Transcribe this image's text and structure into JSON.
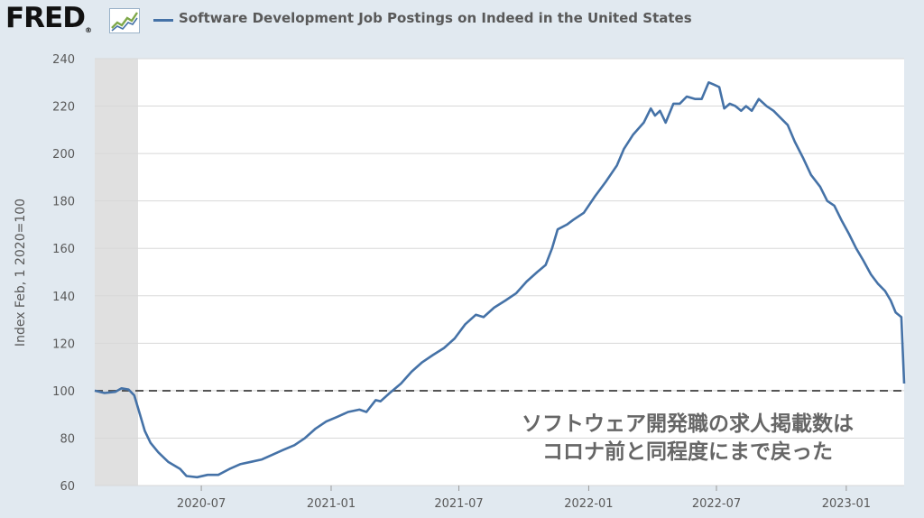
{
  "header": {
    "logo": "FRED",
    "logo_mark": "®",
    "legend_label": "Software Development Job Postings on Indeed in the United States"
  },
  "colors": {
    "series": "#4572a7",
    "recession": "#e0e0e0",
    "background": "#e1e9f0",
    "plot": "#ffffff",
    "reference": "#555555"
  },
  "annotation": {
    "line1": "ソフトウェア開発職の求人掲載数は",
    "line2": "コロナ前と同程度にまで戻った"
  },
  "chart_data": {
    "type": "line",
    "title": "",
    "ylabel": "Index Feb, 1 2020=100",
    "xlabel": "",
    "ylim": [
      60,
      240
    ],
    "xlim": [
      "2020-02-01",
      "2023-03-24"
    ],
    "yticks": [
      60,
      80,
      100,
      120,
      140,
      160,
      180,
      200,
      220,
      240
    ],
    "xticks": [
      "2020-07",
      "2021-01",
      "2021-07",
      "2022-01",
      "2022-07",
      "2023-01"
    ],
    "grid": "horizontal",
    "reference_line": 100,
    "recession": [
      "2020-02-01",
      "2020-04-30"
    ],
    "series": [
      {
        "name": "Software Development Job Postings on Indeed in the United States",
        "points": [
          [
            "2020-02-01",
            100
          ],
          [
            "2020-02-15",
            99
          ],
          [
            "2020-03-01",
            99.5
          ],
          [
            "2020-03-10",
            101
          ],
          [
            "2020-03-20",
            100.5
          ],
          [
            "2020-03-28",
            98
          ],
          [
            "2020-04-05",
            90
          ],
          [
            "2020-04-12",
            83
          ],
          [
            "2020-04-20",
            78
          ],
          [
            "2020-05-01",
            74
          ],
          [
            "2020-05-15",
            70
          ],
          [
            "2020-06-01",
            67
          ],
          [
            "2020-06-10",
            64
          ],
          [
            "2020-06-25",
            63.5
          ],
          [
            "2020-07-10",
            64.5
          ],
          [
            "2020-07-25",
            64.5
          ],
          [
            "2020-08-10",
            67
          ],
          [
            "2020-08-25",
            69
          ],
          [
            "2020-09-10",
            70
          ],
          [
            "2020-09-25",
            71
          ],
          [
            "2020-10-10",
            73
          ],
          [
            "2020-10-25",
            75
          ],
          [
            "2020-11-10",
            77
          ],
          [
            "2020-11-25",
            80
          ],
          [
            "2020-12-10",
            84
          ],
          [
            "2020-12-25",
            87
          ],
          [
            "2021-01-10",
            89
          ],
          [
            "2021-01-25",
            91
          ],
          [
            "2021-02-10",
            92
          ],
          [
            "2021-02-20",
            91
          ],
          [
            "2021-03-05",
            96
          ],
          [
            "2021-03-12",
            95.5
          ],
          [
            "2021-03-25",
            99
          ],
          [
            "2021-04-10",
            103
          ],
          [
            "2021-04-25",
            108
          ],
          [
            "2021-05-10",
            112
          ],
          [
            "2021-05-25",
            115
          ],
          [
            "2021-06-10",
            118
          ],
          [
            "2021-06-25",
            122
          ],
          [
            "2021-07-10",
            128
          ],
          [
            "2021-07-25",
            132
          ],
          [
            "2021-08-05",
            131
          ],
          [
            "2021-08-20",
            135
          ],
          [
            "2021-09-05",
            138
          ],
          [
            "2021-09-20",
            141
          ],
          [
            "2021-10-05",
            146
          ],
          [
            "2021-10-20",
            150
          ],
          [
            "2021-11-01",
            153
          ],
          [
            "2021-11-10",
            160
          ],
          [
            "2021-11-18",
            168
          ],
          [
            "2021-12-01",
            170
          ],
          [
            "2021-12-10",
            172
          ],
          [
            "2021-12-25",
            175
          ],
          [
            "2022-01-10",
            182
          ],
          [
            "2022-01-25",
            188
          ],
          [
            "2022-02-10",
            195
          ],
          [
            "2022-02-20",
            202
          ],
          [
            "2022-03-05",
            208
          ],
          [
            "2022-03-20",
            213
          ],
          [
            "2022-03-30",
            219
          ],
          [
            "2022-04-05",
            216
          ],
          [
            "2022-04-12",
            218
          ],
          [
            "2022-04-20",
            213
          ],
          [
            "2022-05-01",
            221
          ],
          [
            "2022-05-10",
            221
          ],
          [
            "2022-05-20",
            224
          ],
          [
            "2022-06-01",
            223
          ],
          [
            "2022-06-10",
            223
          ],
          [
            "2022-06-20",
            230
          ],
          [
            "2022-06-28",
            229
          ],
          [
            "2022-07-05",
            228
          ],
          [
            "2022-07-12",
            219
          ],
          [
            "2022-07-20",
            221
          ],
          [
            "2022-07-28",
            220
          ],
          [
            "2022-08-05",
            218
          ],
          [
            "2022-08-12",
            220
          ],
          [
            "2022-08-20",
            218
          ],
          [
            "2022-08-30",
            223
          ],
          [
            "2022-09-10",
            220
          ],
          [
            "2022-09-20",
            218
          ],
          [
            "2022-09-30",
            215
          ],
          [
            "2022-10-10",
            212
          ],
          [
            "2022-10-20",
            205
          ],
          [
            "2022-11-01",
            198
          ],
          [
            "2022-11-12",
            191
          ],
          [
            "2022-11-25",
            186
          ],
          [
            "2022-12-05",
            180
          ],
          [
            "2022-12-15",
            178
          ],
          [
            "2022-12-25",
            172
          ],
          [
            "2023-01-05",
            166
          ],
          [
            "2023-01-15",
            160
          ],
          [
            "2023-01-25",
            155
          ],
          [
            "2023-02-05",
            149
          ],
          [
            "2023-02-15",
            145
          ],
          [
            "2023-02-25",
            142
          ],
          [
            "2023-03-05",
            138
          ],
          [
            "2023-03-12",
            133
          ],
          [
            "2023-03-20",
            131
          ],
          [
            "2023-03-24",
            103
          ]
        ]
      }
    ]
  }
}
